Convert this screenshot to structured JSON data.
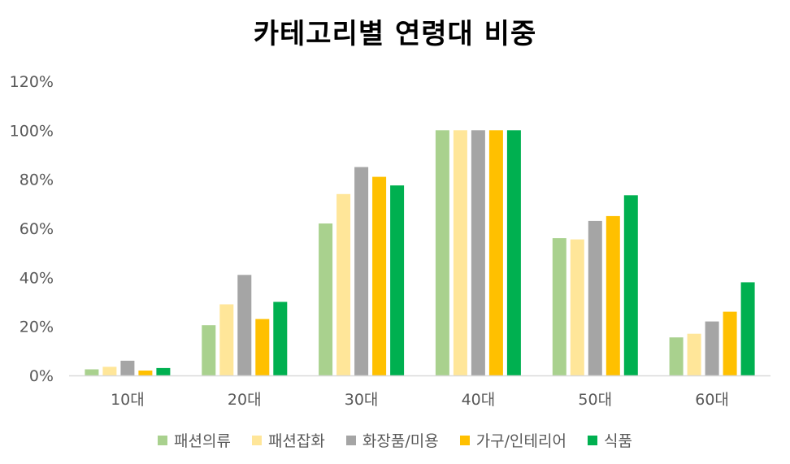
{
  "chart_data": {
    "type": "bar",
    "title": "카테고리별 연령대 비중",
    "xlabel": "",
    "ylabel": "",
    "categories": [
      "10대",
      "20대",
      "30대",
      "40대",
      "50대",
      "60대"
    ],
    "ylim": [
      0,
      120
    ],
    "yticks": [
      "0%",
      "20%",
      "40%",
      "60%",
      "80%",
      "100%",
      "120%"
    ],
    "grid": false,
    "legend_position": "bottom",
    "series": [
      {
        "name": "패션의류",
        "color": "#A9D18E",
        "values": [
          2.5,
          20.5,
          62,
          100,
          56,
          15.5
        ]
      },
      {
        "name": "패션잡화",
        "color": "#FFE699",
        "values": [
          3.5,
          29,
          74,
          100,
          55.5,
          17
        ]
      },
      {
        "name": "화장품/미용",
        "color": "#A5A5A5",
        "values": [
          6,
          41,
          85,
          100,
          63,
          22
        ]
      },
      {
        "name": "가구/인테리어",
        "color": "#FFC000",
        "values": [
          2,
          23,
          81,
          100,
          65,
          26
        ]
      },
      {
        "name": "식품",
        "color": "#00B050",
        "values": [
          3,
          30,
          77.5,
          100,
          73.5,
          38
        ]
      }
    ]
  }
}
